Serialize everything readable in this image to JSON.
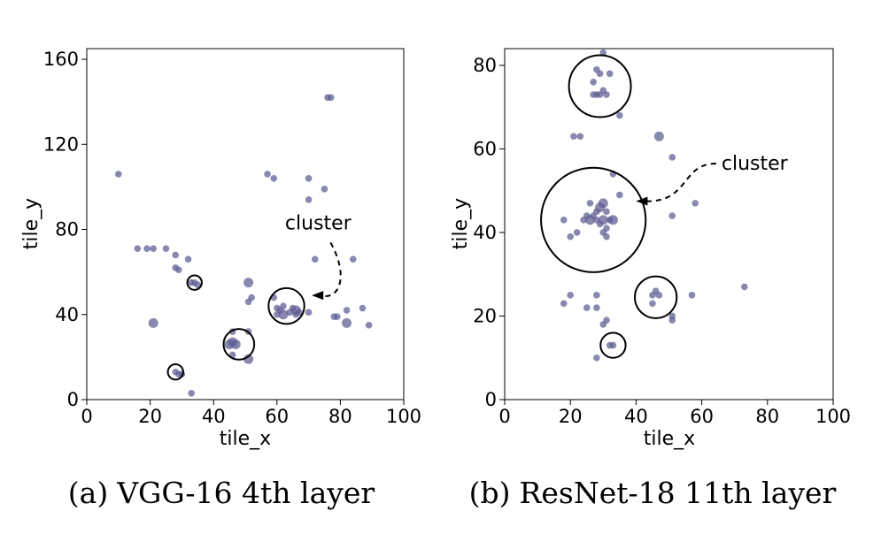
{
  "chart_data": [
    {
      "type": "scatter",
      "title": "VGG-16 4th layer",
      "caption_tag": "(a)",
      "xlabel": "tile_x",
      "ylabel": "tile_y",
      "xlim": [
        0,
        100
      ],
      "ylim": [
        0,
        165
      ],
      "xticks": [
        0,
        20,
        40,
        60,
        80,
        100
      ],
      "yticks": [
        0,
        40,
        80,
        120,
        160
      ],
      "point_color": "#5b5b92",
      "points": [
        {
          "x": 10,
          "y": 106,
          "s": 3
        },
        {
          "x": 76,
          "y": 142,
          "s": 3
        },
        {
          "x": 77,
          "y": 142,
          "s": 3
        },
        {
          "x": 57,
          "y": 106,
          "s": 3
        },
        {
          "x": 59,
          "y": 104,
          "s": 3
        },
        {
          "x": 70,
          "y": 104,
          "s": 3
        },
        {
          "x": 75,
          "y": 99,
          "s": 3
        },
        {
          "x": 70,
          "y": 94,
          "s": 3
        },
        {
          "x": 16,
          "y": 71,
          "s": 3
        },
        {
          "x": 19,
          "y": 71,
          "s": 3
        },
        {
          "x": 21,
          "y": 71,
          "s": 3
        },
        {
          "x": 25,
          "y": 71,
          "s": 3
        },
        {
          "x": 28,
          "y": 68,
          "s": 3
        },
        {
          "x": 32,
          "y": 66,
          "s": 3
        },
        {
          "x": 72,
          "y": 66,
          "s": 3
        },
        {
          "x": 84,
          "y": 66,
          "s": 3
        },
        {
          "x": 28,
          "y": 62,
          "s": 3
        },
        {
          "x": 29,
          "y": 61,
          "s": 3
        },
        {
          "x": 33,
          "y": 55,
          "s": 3
        },
        {
          "x": 34,
          "y": 55,
          "s": 3
        },
        {
          "x": 35,
          "y": 54,
          "s": 3
        },
        {
          "x": 51,
          "y": 55,
          "s": 4
        },
        {
          "x": 52,
          "y": 48,
          "s": 3
        },
        {
          "x": 51,
          "y": 46,
          "s": 3
        },
        {
          "x": 21,
          "y": 36,
          "s": 4
        },
        {
          "x": 59,
          "y": 48,
          "s": 3
        },
        {
          "x": 60,
          "y": 43,
          "s": 3
        },
        {
          "x": 61,
          "y": 42,
          "s": 3
        },
        {
          "x": 62,
          "y": 44,
          "s": 3
        },
        {
          "x": 60,
          "y": 40,
          "s": 3
        },
        {
          "x": 62,
          "y": 40,
          "s": 4
        },
        {
          "x": 64,
          "y": 41,
          "s": 3
        },
        {
          "x": 65,
          "y": 43,
          "s": 3
        },
        {
          "x": 66,
          "y": 42,
          "s": 4
        },
        {
          "x": 67,
          "y": 41,
          "s": 3
        },
        {
          "x": 66,
          "y": 40,
          "s": 3
        },
        {
          "x": 70,
          "y": 41,
          "s": 3
        },
        {
          "x": 78,
          "y": 39,
          "s": 3
        },
        {
          "x": 79,
          "y": 39,
          "s": 3
        },
        {
          "x": 82,
          "y": 42,
          "s": 3
        },
        {
          "x": 87,
          "y": 43,
          "s": 3
        },
        {
          "x": 82,
          "y": 36,
          "s": 4
        },
        {
          "x": 89,
          "y": 35,
          "s": 3
        },
        {
          "x": 46,
          "y": 32,
          "s": 3
        },
        {
          "x": 51,
          "y": 32,
          "s": 3
        },
        {
          "x": 45,
          "y": 26,
          "s": 4
        },
        {
          "x": 46,
          "y": 27,
          "s": 4
        },
        {
          "x": 47,
          "y": 26,
          "s": 4
        },
        {
          "x": 46,
          "y": 21,
          "s": 3
        },
        {
          "x": 51,
          "y": 19,
          "s": 4
        },
        {
          "x": 28,
          "y": 13,
          "s": 3
        },
        {
          "x": 29,
          "y": 12,
          "s": 3
        },
        {
          "x": 30,
          "y": 12,
          "s": 3
        },
        {
          "x": 33,
          "y": 3,
          "s": 3
        }
      ],
      "circles": [
        {
          "x": 34,
          "y": 55,
          "r": 3.4
        },
        {
          "x": 48,
          "y": 26,
          "r": 7.2
        },
        {
          "x": 28,
          "y": 13,
          "r": 3.6
        },
        {
          "x": 63,
          "y": 44,
          "r": 8.4
        }
      ],
      "annotation": {
        "text": "cluster",
        "text_x": 73,
        "text_y": 83,
        "target_x": 71,
        "target_y": 49
      }
    },
    {
      "type": "scatter",
      "title": "ResNet-18 11th layer",
      "caption_tag": "(b)",
      "xlabel": "tile_x",
      "ylabel": "tile_y",
      "xlim": [
        0,
        100
      ],
      "ylim": [
        0,
        84
      ],
      "xticks": [
        0,
        20,
        40,
        60,
        80,
        100
      ],
      "yticks": [
        0,
        20,
        40,
        60,
        80
      ],
      "point_color": "#5b5b92",
      "points": [
        {
          "x": 30,
          "y": 83,
          "s": 3
        },
        {
          "x": 28,
          "y": 79,
          "s": 3
        },
        {
          "x": 29,
          "y": 78,
          "s": 3
        },
        {
          "x": 32,
          "y": 78,
          "s": 3
        },
        {
          "x": 27,
          "y": 76,
          "s": 3
        },
        {
          "x": 27,
          "y": 73,
          "s": 3
        },
        {
          "x": 28,
          "y": 73,
          "s": 3
        },
        {
          "x": 29,
          "y": 73,
          "s": 3
        },
        {
          "x": 30,
          "y": 74,
          "s": 3
        },
        {
          "x": 31,
          "y": 73,
          "s": 3
        },
        {
          "x": 35,
          "y": 68,
          "s": 3
        },
        {
          "x": 21,
          "y": 63,
          "s": 3
        },
        {
          "x": 23,
          "y": 63,
          "s": 3
        },
        {
          "x": 47,
          "y": 63,
          "s": 4
        },
        {
          "x": 51,
          "y": 58,
          "s": 3
        },
        {
          "x": 33,
          "y": 54,
          "s": 3
        },
        {
          "x": 35,
          "y": 49,
          "s": 3
        },
        {
          "x": 58,
          "y": 47,
          "s": 3
        },
        {
          "x": 51,
          "y": 44,
          "s": 3
        },
        {
          "x": 26,
          "y": 47,
          "s": 3
        },
        {
          "x": 28,
          "y": 45,
          "s": 3
        },
        {
          "x": 29,
          "y": 46,
          "s": 4
        },
        {
          "x": 30,
          "y": 47,
          "s": 4
        },
        {
          "x": 31,
          "y": 45,
          "s": 3
        },
        {
          "x": 25,
          "y": 44,
          "s": 3
        },
        {
          "x": 26,
          "y": 43,
          "s": 4
        },
        {
          "x": 27,
          "y": 44,
          "s": 3
        },
        {
          "x": 28,
          "y": 43,
          "s": 3
        },
        {
          "x": 29,
          "y": 42,
          "s": 3
        },
        {
          "x": 30,
          "y": 43,
          "s": 4
        },
        {
          "x": 32,
          "y": 43,
          "s": 3
        },
        {
          "x": 33,
          "y": 43,
          "s": 4
        },
        {
          "x": 24,
          "y": 43,
          "s": 3
        },
        {
          "x": 31,
          "y": 41,
          "s": 3
        },
        {
          "x": 30,
          "y": 40,
          "s": 3
        },
        {
          "x": 31,
          "y": 39,
          "s": 3
        },
        {
          "x": 22,
          "y": 40,
          "s": 3
        },
        {
          "x": 20,
          "y": 39,
          "s": 3
        },
        {
          "x": 18,
          "y": 43,
          "s": 3
        },
        {
          "x": 20,
          "y": 25,
          "s": 3
        },
        {
          "x": 18,
          "y": 23,
          "s": 3
        },
        {
          "x": 25,
          "y": 22,
          "s": 3
        },
        {
          "x": 28,
          "y": 22,
          "s": 3
        },
        {
          "x": 28,
          "y": 25,
          "s": 3
        },
        {
          "x": 31,
          "y": 19,
          "s": 3
        },
        {
          "x": 30,
          "y": 18,
          "s": 3
        },
        {
          "x": 45,
          "y": 25,
          "s": 3
        },
        {
          "x": 46,
          "y": 26,
          "s": 3
        },
        {
          "x": 47,
          "y": 25,
          "s": 3
        },
        {
          "x": 45,
          "y": 23,
          "s": 3
        },
        {
          "x": 57,
          "y": 25,
          "s": 3
        },
        {
          "x": 51,
          "y": 20,
          "s": 3
        },
        {
          "x": 51,
          "y": 19,
          "s": 3
        },
        {
          "x": 73,
          "y": 27,
          "s": 3
        },
        {
          "x": 32,
          "y": 13,
          "s": 3
        },
        {
          "x": 33,
          "y": 13,
          "s": 3
        },
        {
          "x": 28,
          "y": 10,
          "s": 3
        }
      ],
      "circles": [
        {
          "x": 29,
          "y": 75,
          "r": 7.4
        },
        {
          "x": 27,
          "y": 43,
          "r": 12.5
        },
        {
          "x": 46,
          "y": 24.5,
          "r": 5
        },
        {
          "x": 33,
          "y": 13,
          "r": 3
        }
      ],
      "annotation": {
        "text": "cluster",
        "text_x": 66,
        "text_y": 56.5,
        "target_x": 40,
        "target_y": 47.5
      }
    }
  ]
}
